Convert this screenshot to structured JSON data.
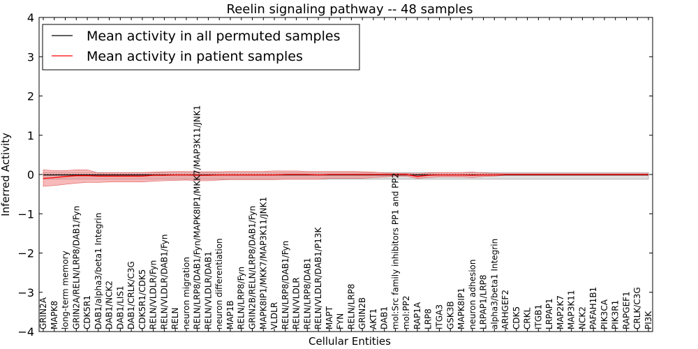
{
  "chart_data": {
    "type": "line",
    "title": "Reelin signaling pathway -- 48 samples",
    "xlabel": "Cellular Entities",
    "ylabel": "Inferred Activity",
    "ylim": [
      -4,
      4
    ],
    "yticks": [
      -4,
      -3,
      -2,
      -1,
      0,
      1,
      2,
      3,
      4
    ],
    "ytick_labels": [
      "−4",
      "−3",
      "−2",
      "−1",
      "0",
      "1",
      "2",
      "3",
      "4"
    ],
    "legend": {
      "position": "top-left",
      "entries": [
        {
          "label": "Mean activity in all permuted samples",
          "color": "#000000"
        },
        {
          "label": "Mean activity in patient samples",
          "color": "#ff0000"
        }
      ]
    },
    "categories": [
      "GRIN2A",
      "MAPK8",
      "long-term memory",
      "GRIN2A/RELN/LRP8/DAB1/Fyn",
      "CDK5R1",
      "DAB1/alpha3/beta1 Integrin",
      "DAB1/NCK2",
      "DAB1/LIS1",
      "DAB1/CRLK/C3G",
      "CDK5R1/CDK5",
      "RELN/VLDLR/Fyn",
      "RELN/VLDLR/DAB1/Fyn",
      "RELN",
      "neuron migration",
      "RELN/LRP8/DAB1/Fyn/MAPK8IP1/MKK7/MAP3K11/JNK1",
      "RELN/VLDLR/DAB1",
      "neuron differentiation",
      "MAP1B",
      "RELN/LRP8/Fyn",
      "GRIN2B/RELN/LRP8/DAB1/Fyn",
      "MAPK8IP1/MKK7/MAP3K11/JNK1",
      "VLDLR",
      "RELN/LRP8/DAB1/Fyn",
      "RELN/VLDLR",
      "RELN/LRP8/DAB1",
      "RELN/VLDLR/DAB1/P13K",
      "MAPT",
      "FYN",
      "RELN/LRP8",
      "GRIN2B",
      "AKT1",
      "DAB1",
      "mol:Src family inhibitors PP1 and PP2",
      "mol:PP2",
      "RAP1A",
      "LRP8",
      "ITGA3",
      "GSK3B",
      "MAPK8IP1",
      "neuron adhesion",
      "LRPAP1/LRP8",
      "alpha3/beta1 Integrin",
      "ARHGEF2",
      "CDK5",
      "CRKL",
      "ITGB1",
      "LRPAP1",
      "MAP2K7",
      "MAP3K11",
      "NCK2",
      "PAFAH1B1",
      "PIK3CA",
      "PIK3R1",
      "RAPGEF1",
      "CRLK/C3G",
      "PI3K"
    ],
    "series": [
      {
        "name": "Mean activity in patient samples",
        "color": "#ff0000",
        "values": [
          -0.1,
          -0.08,
          -0.05,
          -0.03,
          -0.03,
          -0.04,
          -0.04,
          -0.04,
          -0.04,
          -0.04,
          -0.02,
          -0.02,
          -0.01,
          -0.01,
          -0.02,
          -0.02,
          -0.01,
          -0.01,
          -0.01,
          -0.01,
          -0.01,
          -0.01,
          0.0,
          0.0,
          0.0,
          -0.01,
          0.0,
          0.0,
          0.0,
          0.0,
          0.0,
          0.0,
          0.0,
          0.0,
          -0.05,
          -0.02,
          -0.01,
          -0.01,
          -0.01,
          -0.02,
          -0.01,
          -0.01,
          0.0,
          0.0,
          0.0,
          0.0,
          0.0,
          0.0,
          0.0,
          0.0,
          0.0,
          0.0,
          0.0,
          0.0,
          0.0,
          0.0
        ],
        "band_lower": [
          -0.3,
          -0.28,
          -0.25,
          -0.22,
          -0.2,
          -0.2,
          -0.19,
          -0.19,
          -0.19,
          -0.19,
          -0.17,
          -0.16,
          -0.15,
          -0.14,
          -0.16,
          -0.16,
          -0.14,
          -0.13,
          -0.13,
          -0.13,
          -0.13,
          -0.13,
          -0.12,
          -0.12,
          -0.12,
          -0.12,
          -0.1,
          -0.1,
          -0.1,
          -0.1,
          -0.08,
          -0.06,
          -0.04,
          -0.04,
          -0.1,
          -0.08,
          -0.06,
          -0.06,
          -0.06,
          -0.08,
          -0.05,
          -0.04,
          -0.02,
          -0.02,
          -0.02,
          -0.02,
          -0.02,
          -0.02,
          -0.02,
          -0.02,
          -0.02,
          -0.02,
          -0.02,
          -0.02,
          -0.02,
          -0.02
        ],
        "band_upper": [
          0.12,
          0.1,
          0.1,
          0.12,
          0.12,
          0.04,
          0.05,
          0.05,
          0.05,
          0.05,
          0.06,
          0.07,
          0.08,
          0.08,
          0.07,
          0.07,
          0.07,
          0.08,
          0.08,
          0.08,
          0.08,
          0.09,
          0.09,
          0.09,
          0.08,
          0.08,
          0.08,
          0.08,
          0.08,
          0.07,
          0.06,
          0.04,
          0.03,
          0.03,
          0.02,
          0.04,
          0.05,
          0.05,
          0.05,
          0.06,
          0.04,
          0.03,
          0.02,
          0.02,
          0.02,
          0.02,
          0.02,
          0.02,
          0.02,
          0.02,
          0.02,
          0.02,
          0.02,
          0.02,
          0.02,
          0.02
        ]
      },
      {
        "name": "Mean activity in all permuted samples",
        "color": "#000000",
        "values": [
          -0.01,
          -0.01,
          -0.01,
          -0.01,
          -0.01,
          -0.01,
          -0.01,
          -0.01,
          -0.01,
          -0.01,
          -0.01,
          -0.01,
          -0.01,
          -0.01,
          -0.01,
          -0.01,
          -0.01,
          -0.01,
          -0.01,
          -0.01,
          -0.01,
          -0.01,
          -0.01,
          -0.01,
          -0.01,
          -0.01,
          -0.01,
          -0.01,
          -0.01,
          -0.01,
          -0.01,
          -0.01,
          -0.01,
          -0.01,
          -0.01,
          -0.01,
          -0.01,
          -0.01,
          -0.01,
          -0.01,
          -0.01,
          -0.01,
          -0.01,
          -0.01,
          -0.01,
          -0.01,
          -0.01,
          -0.01,
          -0.01,
          -0.01,
          -0.01,
          -0.01,
          -0.01,
          -0.01,
          -0.01,
          -0.01
        ],
        "band_lower": [
          -0.12,
          -0.12,
          -0.12,
          -0.12,
          -0.12,
          -0.12,
          -0.12,
          -0.12,
          -0.12,
          -0.12,
          -0.12,
          -0.12,
          -0.12,
          -0.12,
          -0.12,
          -0.12,
          -0.12,
          -0.12,
          -0.12,
          -0.12,
          -0.12,
          -0.12,
          -0.12,
          -0.12,
          -0.12,
          -0.12,
          -0.12,
          -0.12,
          -0.12,
          -0.12,
          -0.12,
          -0.12,
          -0.12,
          -0.12,
          -0.12,
          -0.12,
          -0.12,
          -0.12,
          -0.12,
          -0.12,
          -0.12,
          -0.12,
          -0.12,
          -0.12,
          -0.12,
          -0.12,
          -0.12,
          -0.12,
          -0.12,
          -0.12,
          -0.12,
          -0.12,
          -0.12,
          -0.12,
          -0.12,
          -0.12
        ],
        "band_upper": [
          0.05,
          0.05,
          0.05,
          0.05,
          0.05,
          0.05,
          0.05,
          0.05,
          0.05,
          0.05,
          0.05,
          0.05,
          0.05,
          0.05,
          0.05,
          0.05,
          0.05,
          0.05,
          0.05,
          0.05,
          0.05,
          0.05,
          0.05,
          0.05,
          0.05,
          0.05,
          0.05,
          0.05,
          0.05,
          0.05,
          0.05,
          0.05,
          0.05,
          0.05,
          0.05,
          0.05,
          0.05,
          0.05,
          0.05,
          0.05,
          0.05,
          0.05,
          0.05,
          0.05,
          0.05,
          0.05,
          0.05,
          0.05,
          0.05,
          0.05,
          0.05,
          0.05,
          0.05,
          0.05,
          0.05,
          0.05
        ]
      }
    ],
    "zero_line": true
  }
}
